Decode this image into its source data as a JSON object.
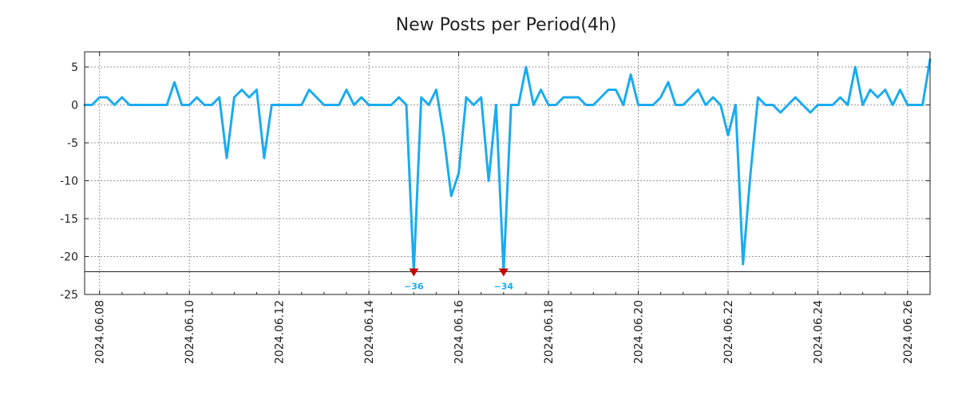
{
  "chart_data": {
    "type": "line",
    "title": "New Posts per Period(4h)",
    "xlabel": "",
    "ylabel": "",
    "ylim": [
      -25,
      7
    ],
    "yticks": [
      5,
      0,
      -5,
      -10,
      -15,
      -20,
      -25
    ],
    "ytick_labels": [
      "5",
      "0",
      "-5",
      "-10",
      "-15",
      "-20",
      "-25"
    ],
    "x_unit": "days since 2024.06.07 00:00",
    "xlim": [
      7.667,
      26.5
    ],
    "xticks": [
      8,
      10,
      12,
      14,
      16,
      18,
      20,
      22,
      24,
      26
    ],
    "xtick_labels": [
      "2024.06.08",
      "2024.06.10",
      "2024.06.12",
      "2024.06.14",
      "2024.06.16",
      "2024.06.18",
      "2024.06.20",
      "2024.06.22",
      "2024.06.24",
      "2024.06.26"
    ],
    "grid": true,
    "clip_line": -22,
    "series": [
      {
        "name": "New Posts",
        "color": "#1aabf0",
        "x": [
          7.667,
          7.833,
          8.0,
          8.167,
          8.333,
          8.5,
          8.667,
          8.833,
          9.0,
          9.167,
          9.333,
          9.5,
          9.667,
          9.833,
          10.0,
          10.167,
          10.333,
          10.5,
          10.667,
          10.833,
          11.0,
          11.167,
          11.333,
          11.5,
          11.667,
          11.833,
          12.0,
          12.167,
          12.333,
          12.5,
          12.667,
          12.833,
          13.0,
          13.167,
          13.333,
          13.5,
          13.667,
          13.833,
          14.0,
          14.167,
          14.333,
          14.5,
          14.667,
          14.833,
          15.0,
          15.167,
          15.333,
          15.5,
          15.667,
          15.833,
          16.0,
          16.167,
          16.333,
          16.5,
          16.667,
          16.833,
          17.0,
          17.167,
          17.333,
          17.5,
          17.667,
          17.833,
          18.0,
          18.167,
          18.333,
          18.5,
          18.667,
          18.833,
          19.0,
          19.167,
          19.333,
          19.5,
          19.667,
          19.833,
          20.0,
          20.167,
          20.333,
          20.5,
          20.667,
          20.833,
          21.0,
          21.167,
          21.333,
          21.5,
          21.667,
          21.833,
          22.0,
          22.167,
          22.333,
          22.5,
          22.667,
          22.833,
          23.0,
          23.167,
          23.333,
          23.5,
          23.667,
          23.833,
          24.0,
          24.167,
          24.333,
          24.5,
          24.667,
          24.833,
          25.0,
          25.167,
          25.333,
          25.5,
          25.667,
          25.833,
          26.0,
          26.167,
          26.333,
          26.5
        ],
        "values": [
          0,
          0,
          1,
          1,
          0,
          1,
          0,
          0,
          0,
          0,
          0,
          0,
          3,
          0,
          0,
          1,
          0,
          0,
          1,
          -7,
          1,
          2,
          1,
          2,
          -7,
          0,
          0,
          0,
          0,
          0,
          2,
          1,
          0,
          0,
          0,
          2,
          0,
          1,
          0,
          0,
          0,
          0,
          1,
          0,
          -36,
          1,
          0,
          2,
          -4,
          -12,
          -9,
          1,
          0,
          1,
          -10,
          0,
          -34,
          0,
          0,
          5,
          0,
          2,
          0,
          0,
          1,
          1,
          1,
          0,
          0,
          1,
          2,
          2,
          0,
          4,
          0,
          0,
          0,
          1,
          3,
          0,
          0,
          1,
          2,
          0,
          1,
          0,
          -4,
          0,
          -21,
          -9,
          1,
          0,
          0,
          -1,
          0,
          1,
          0,
          -1,
          0,
          0,
          0,
          1,
          0,
          5,
          0,
          2,
          1,
          2,
          0,
          2,
          0,
          0,
          0,
          6
        ]
      }
    ],
    "annotations": [
      {
        "x": 15.0,
        "label": "−36",
        "marker_color": "#cc0000",
        "text_color": "#1aabf0"
      },
      {
        "x": 17.0,
        "label": "−34",
        "marker_color": "#cc0000",
        "text_color": "#1aabf0"
      }
    ]
  }
}
